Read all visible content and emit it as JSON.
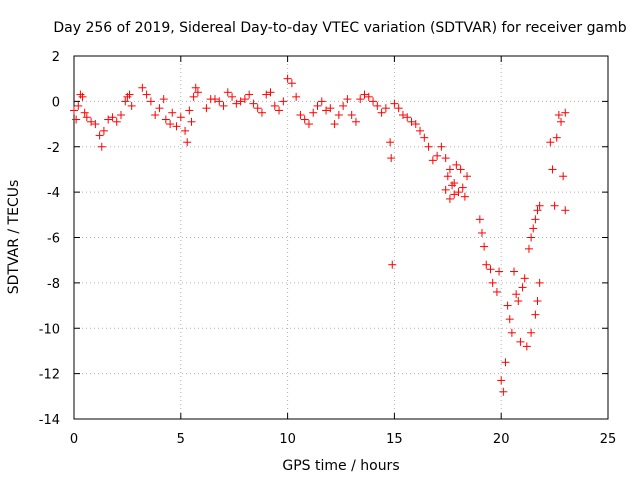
{
  "chart_data": {
    "type": "scatter",
    "title": "Day 256 of 2019, Sidereal Day-to-day VTEC variation (SDTVAR) for receiver gamb",
    "xlabel": "GPS time / hours",
    "ylabel": "SDTVAR / TECUs",
    "xlim": [
      0,
      25
    ],
    "ylim": [
      -14,
      2
    ],
    "xticks": [
      0,
      5,
      10,
      15,
      20,
      25
    ],
    "yticks": [
      2,
      0,
      -2,
      -4,
      -6,
      -8,
      -10,
      -12,
      -14
    ],
    "grid": true,
    "marker": "+",
    "series": [
      {
        "name": "SDTVAR",
        "color": "#ff0000",
        "points": [
          [
            0.0,
            -0.4
          ],
          [
            0.1,
            -0.8
          ],
          [
            0.2,
            -0.2
          ],
          [
            0.3,
            0.3
          ],
          [
            0.4,
            0.2
          ],
          [
            0.5,
            -0.5
          ],
          [
            0.6,
            -0.7
          ],
          [
            0.8,
            -0.9
          ],
          [
            1.0,
            -1.0
          ],
          [
            1.2,
            -1.5
          ],
          [
            1.3,
            -2.0
          ],
          [
            1.4,
            -1.3
          ],
          [
            1.6,
            -0.8
          ],
          [
            1.8,
            -0.7
          ],
          [
            2.0,
            -0.9
          ],
          [
            2.2,
            -0.6
          ],
          [
            2.4,
            0.0
          ],
          [
            2.5,
            0.2
          ],
          [
            2.6,
            0.3
          ],
          [
            2.7,
            -0.2
          ],
          [
            3.2,
            0.6
          ],
          [
            3.4,
            0.3
          ],
          [
            3.6,
            0.0
          ],
          [
            3.8,
            -0.6
          ],
          [
            4.0,
            -0.3
          ],
          [
            4.2,
            0.1
          ],
          [
            4.3,
            -0.8
          ],
          [
            4.5,
            -1.0
          ],
          [
            4.6,
            -0.5
          ],
          [
            4.8,
            -1.1
          ],
          [
            5.0,
            -0.7
          ],
          [
            5.2,
            -1.3
          ],
          [
            5.3,
            -1.8
          ],
          [
            5.4,
            -0.4
          ],
          [
            5.5,
            -0.9
          ],
          [
            5.6,
            0.2
          ],
          [
            5.7,
            0.6
          ],
          [
            5.8,
            0.4
          ],
          [
            6.2,
            -0.3
          ],
          [
            6.4,
            0.1
          ],
          [
            6.6,
            0.1
          ],
          [
            6.8,
            0.0
          ],
          [
            7.0,
            -0.2
          ],
          [
            7.2,
            0.4
          ],
          [
            7.4,
            0.2
          ],
          [
            7.6,
            -0.1
          ],
          [
            7.8,
            0.0
          ],
          [
            8.0,
            0.1
          ],
          [
            8.2,
            0.3
          ],
          [
            8.4,
            -0.1
          ],
          [
            8.6,
            -0.3
          ],
          [
            8.8,
            -0.5
          ],
          [
            9.0,
            0.3
          ],
          [
            9.2,
            0.4
          ],
          [
            9.4,
            -0.2
          ],
          [
            9.6,
            -0.4
          ],
          [
            9.8,
            0.0
          ],
          [
            10.0,
            1.0
          ],
          [
            10.2,
            0.8
          ],
          [
            10.4,
            0.2
          ],
          [
            10.6,
            -0.6
          ],
          [
            10.8,
            -0.8
          ],
          [
            11.0,
            -1.0
          ],
          [
            11.2,
            -0.5
          ],
          [
            11.4,
            -0.2
          ],
          [
            11.6,
            0.0
          ],
          [
            11.8,
            -0.4
          ],
          [
            12.0,
            -0.3
          ],
          [
            12.2,
            -1.0
          ],
          [
            12.4,
            -0.6
          ],
          [
            12.6,
            -0.2
          ],
          [
            12.8,
            0.1
          ],
          [
            13.0,
            -0.6
          ],
          [
            13.2,
            -0.9
          ],
          [
            13.4,
            0.1
          ],
          [
            13.6,
            0.3
          ],
          [
            13.8,
            0.2
          ],
          [
            14.0,
            0.0
          ],
          [
            14.2,
            -0.2
          ],
          [
            14.4,
            -0.5
          ],
          [
            14.6,
            -0.3
          ],
          [
            14.8,
            -1.8
          ],
          [
            14.85,
            -2.5
          ],
          [
            14.9,
            -7.2
          ],
          [
            15.0,
            -0.1
          ],
          [
            15.2,
            -0.3
          ],
          [
            15.4,
            -0.6
          ],
          [
            15.6,
            -0.7
          ],
          [
            15.8,
            -0.9
          ],
          [
            16.0,
            -1.0
          ],
          [
            16.2,
            -1.3
          ],
          [
            16.4,
            -1.6
          ],
          [
            16.6,
            -2.0
          ],
          [
            16.8,
            -2.6
          ],
          [
            17.0,
            -2.4
          ],
          [
            17.2,
            -2.0
          ],
          [
            17.4,
            -2.5
          ],
          [
            17.6,
            -3.0
          ],
          [
            17.8,
            -3.6
          ],
          [
            18.0,
            -4.0
          ],
          [
            18.2,
            -3.8
          ],
          [
            18.4,
            -3.3
          ],
          [
            17.4,
            -3.9
          ],
          [
            17.6,
            -4.3
          ],
          [
            17.8,
            -4.1
          ],
          [
            17.5,
            -3.3
          ],
          [
            17.7,
            -3.7
          ],
          [
            17.9,
            -2.8
          ],
          [
            18.1,
            -3.0
          ],
          [
            18.3,
            -4.2
          ],
          [
            19.0,
            -5.2
          ],
          [
            19.1,
            -5.8
          ],
          [
            19.2,
            -6.4
          ],
          [
            19.3,
            -7.2
          ],
          [
            19.5,
            -7.4
          ],
          [
            19.6,
            -8.0
          ],
          [
            19.8,
            -8.4
          ],
          [
            19.9,
            -7.5
          ],
          [
            20.0,
            -12.3
          ],
          [
            20.1,
            -12.8
          ],
          [
            20.2,
            -11.5
          ],
          [
            20.3,
            -9.0
          ],
          [
            20.4,
            -9.6
          ],
          [
            20.5,
            -10.2
          ],
          [
            20.6,
            -7.5
          ],
          [
            20.7,
            -8.5
          ],
          [
            20.8,
            -8.8
          ],
          [
            20.9,
            -10.6
          ],
          [
            21.0,
            -8.2
          ],
          [
            21.1,
            -7.8
          ],
          [
            21.2,
            -10.8
          ],
          [
            21.4,
            -10.2
          ],
          [
            21.6,
            -9.4
          ],
          [
            21.7,
            -8.8
          ],
          [
            21.8,
            -8.0
          ],
          [
            21.3,
            -6.5
          ],
          [
            21.4,
            -6.0
          ],
          [
            21.5,
            -5.6
          ],
          [
            21.6,
            -5.2
          ],
          [
            21.7,
            -4.8
          ],
          [
            21.8,
            -4.6
          ],
          [
            22.3,
            -1.8
          ],
          [
            22.4,
            -3.0
          ],
          [
            22.5,
            -4.6
          ],
          [
            22.6,
            -1.6
          ],
          [
            22.7,
            -0.6
          ],
          [
            22.8,
            -0.9
          ],
          [
            22.9,
            -3.3
          ],
          [
            23.0,
            -4.8
          ],
          [
            23.0,
            -0.5
          ]
        ]
      }
    ]
  }
}
